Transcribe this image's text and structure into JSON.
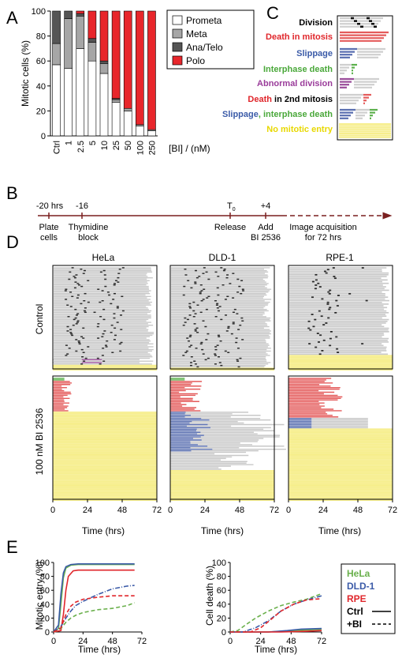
{
  "panels": {
    "A": "A",
    "B": "B",
    "C": "C",
    "D": "D",
    "E": "E"
  },
  "colors": {
    "prometa": "#ffffff",
    "meta": "#a6a6a6",
    "anatelo": "#555555",
    "polo": "#e8262b",
    "division": "#222222",
    "death_mitosis": "#e45b5b",
    "slippage": "#5a6fb0",
    "interphase": "#5bb04b",
    "abnormal": "#9a4c9a",
    "timeline_gray": "#c8c8c8",
    "no_entry": "#f6ee8c",
    "hela": "#6ab04c",
    "dld1": "#3b5ba8",
    "rpe": "#e0262b",
    "arrow": "#7a1f1f"
  },
  "panelA": {
    "ylabel": "Mitotic cells (%)",
    "xlabel": "[BI] / (nM)",
    "legend": [
      "Prometa",
      "Meta",
      "Ana/Telo",
      "Polo"
    ]
  },
  "panelB": {
    "labels": [
      {
        "t": "-20 hrs",
        "lines": [
          "Plate",
          "cells"
        ]
      },
      {
        "t": "-16",
        "lines": [
          "Thymidine",
          "block"
        ]
      },
      {
        "t": "T",
        "sub": "0",
        "lines": [
          "Release"
        ]
      },
      {
        "t": "+4",
        "lines": [
          "Add",
          "BI 2536"
        ]
      },
      {
        "t": "",
        "lines": [
          "Image acquisition",
          "for 72 hrs"
        ]
      }
    ]
  },
  "panelC": {
    "legend": [
      {
        "parts": [
          {
            "text": "Division",
            "color": "#000000"
          }
        ]
      },
      {
        "parts": [
          {
            "text": "Death in mitosis",
            "color": "#e0262b"
          }
        ]
      },
      {
        "parts": [
          {
            "text": "Slippage",
            "color": "#3b5ba8"
          }
        ]
      },
      {
        "parts": [
          {
            "text": "Interphase death",
            "color": "#4aa83a"
          }
        ]
      },
      {
        "parts": [
          {
            "text": "Abnormal division",
            "color": "#9a3c9a"
          }
        ]
      },
      {
        "parts": [
          {
            "text": "Death",
            "color": "#e0262b"
          },
          {
            "text": " in 2nd mitosis",
            "color": "#000000"
          }
        ]
      },
      {
        "parts": [
          {
            "text": "Slippage",
            "color": "#3b5ba8"
          },
          {
            "text": ", interphase death",
            "color": "#4aa83a"
          }
        ]
      },
      {
        "parts": [
          {
            "text": "No mitotic entry",
            "color": "#e8d800"
          }
        ]
      }
    ]
  },
  "panelD": {
    "columns": [
      "HeLa",
      "DLD-1",
      "RPE-1"
    ],
    "rows": [
      "Control",
      "100 nM BI 2536"
    ],
    "xlabel": "Time (hrs)",
    "ticks": [
      "0",
      "24",
      "48",
      "72"
    ]
  },
  "panelE": {
    "left_ylabel": "Mitotic entry (%)",
    "right_ylabel": "Cell death (%)",
    "xlabel": "Time (hrs)",
    "yticks": [
      "0",
      "20",
      "40",
      "60",
      "80",
      "100"
    ],
    "xticks": [
      "0",
      "24",
      "48",
      "72"
    ],
    "legend": [
      {
        "label": "HeLa",
        "color": "#6ab04c"
      },
      {
        "label": "DLD-1",
        "color": "#3b5ba8"
      },
      {
        "label": "RPE",
        "color": "#e0262b"
      },
      {
        "label": "Ctrl",
        "color": "#000000",
        "style": "solid"
      },
      {
        "label": "+BI",
        "color": "#000000",
        "style": "dashed"
      }
    ]
  },
  "chart_data": [
    {
      "type": "bar",
      "stacked": true,
      "categories": [
        "Ctrl",
        "1",
        "2.5",
        "5",
        "10",
        "25",
        "50",
        "100",
        "250"
      ],
      "series": [
        {
          "name": "Prometa",
          "values": [
            57,
            54,
            70,
            60,
            50,
            27,
            20,
            8,
            4
          ]
        },
        {
          "name": "Meta",
          "values": [
            17,
            40,
            26,
            15,
            8,
            2,
            2,
            1,
            1
          ]
        },
        {
          "name": "Ana/Telo",
          "values": [
            26,
            6,
            2,
            3,
            2,
            1,
            0,
            0,
            0
          ]
        },
        {
          "name": "Polo",
          "values": [
            0,
            0,
            2,
            22,
            40,
            70,
            78,
            91,
            95
          ]
        }
      ],
      "xlabel": "[BI] / (nM)",
      "ylabel": "Mitotic cells (%)",
      "ylim": [
        0,
        100
      ],
      "yticks": [
        0,
        20,
        40,
        60,
        80,
        100
      ]
    },
    {
      "type": "line",
      "xlabel": "Time (hrs)",
      "ylabel": "Mitotic entry (%)",
      "xlim": [
        0,
        72
      ],
      "ylim": [
        0,
        100
      ],
      "series": [
        {
          "name": "HeLa Ctrl",
          "color": "#6ab04c",
          "style": "solid",
          "x": [
            0,
            4,
            6,
            8,
            10,
            14,
            20,
            66
          ],
          "y": [
            0,
            5,
            40,
            78,
            92,
            96,
            97,
            97
          ]
        },
        {
          "name": "DLD-1 Ctrl",
          "color": "#3b5ba8",
          "style": "solid",
          "x": [
            0,
            4,
            6,
            8,
            10,
            14,
            20,
            66
          ],
          "y": [
            0,
            10,
            55,
            85,
            94,
            97,
            98,
            98
          ]
        },
        {
          "name": "RPE Ctrl",
          "color": "#e0262b",
          "style": "solid",
          "x": [
            0,
            6,
            8,
            10,
            12,
            16,
            20,
            66
          ],
          "y": [
            0,
            2,
            25,
            60,
            80,
            88,
            89,
            89
          ]
        },
        {
          "name": "HeLa +BI",
          "color": "#6ab04c",
          "style": "dashed",
          "x": [
            0,
            6,
            10,
            14,
            18,
            24,
            36,
            48,
            60,
            66
          ],
          "y": [
            0,
            5,
            14,
            20,
            24,
            28,
            32,
            34,
            38,
            42
          ]
        },
        {
          "name": "DLD-1 +BI",
          "color": "#3b5ba8",
          "style": "dashdot",
          "x": [
            0,
            6,
            10,
            14,
            18,
            24,
            36,
            48,
            60,
            66
          ],
          "y": [
            0,
            8,
            20,
            30,
            38,
            44,
            54,
            62,
            66,
            67
          ]
        },
        {
          "name": "RPE +BI",
          "color": "#e0262b",
          "style": "dashed",
          "x": [
            0,
            6,
            10,
            14,
            18,
            24,
            36,
            48,
            60,
            66
          ],
          "y": [
            0,
            6,
            25,
            37,
            43,
            47,
            50,
            52,
            52,
            52
          ]
        }
      ]
    },
    {
      "type": "line",
      "xlabel": "Time (hrs)",
      "ylabel": "Cell death (%)",
      "xlim": [
        0,
        72
      ],
      "ylim": [
        0,
        100
      ],
      "series": [
        {
          "name": "HeLa Ctrl",
          "color": "#6ab04c",
          "style": "solid",
          "x": [
            0,
            30,
            50,
            60,
            72
          ],
          "y": [
            0,
            0,
            2,
            3,
            4
          ]
        },
        {
          "name": "DLD-1 Ctrl",
          "color": "#3b5ba8",
          "style": "solid",
          "x": [
            0,
            30,
            45,
            55,
            72
          ],
          "y": [
            0,
            0,
            2,
            4,
            5
          ]
        },
        {
          "name": "RPE Ctrl",
          "color": "#e0262b",
          "style": "solid",
          "x": [
            0,
            40,
            60,
            72
          ],
          "y": [
            0,
            0,
            1,
            2
          ]
        },
        {
          "name": "HeLa +BI",
          "color": "#6ab04c",
          "style": "dashed",
          "x": [
            0,
            6,
            12,
            20,
            30,
            40,
            50,
            60,
            72
          ],
          "y": [
            0,
            2,
            10,
            20,
            30,
            38,
            43,
            47,
            55
          ]
        },
        {
          "name": "DLD-1 +BI",
          "color": "#3b5ba8",
          "style": "dashdot",
          "x": [
            0,
            10,
            20,
            30,
            40,
            50,
            60,
            72
          ],
          "y": [
            0,
            0,
            6,
            16,
            30,
            40,
            46,
            52
          ]
        },
        {
          "name": "RPE +BI",
          "color": "#e0262b",
          "style": "dashed",
          "x": [
            0,
            16,
            24,
            32,
            40,
            50,
            60,
            72
          ],
          "y": [
            0,
            0,
            6,
            18,
            30,
            40,
            46,
            48
          ]
        }
      ]
    }
  ]
}
